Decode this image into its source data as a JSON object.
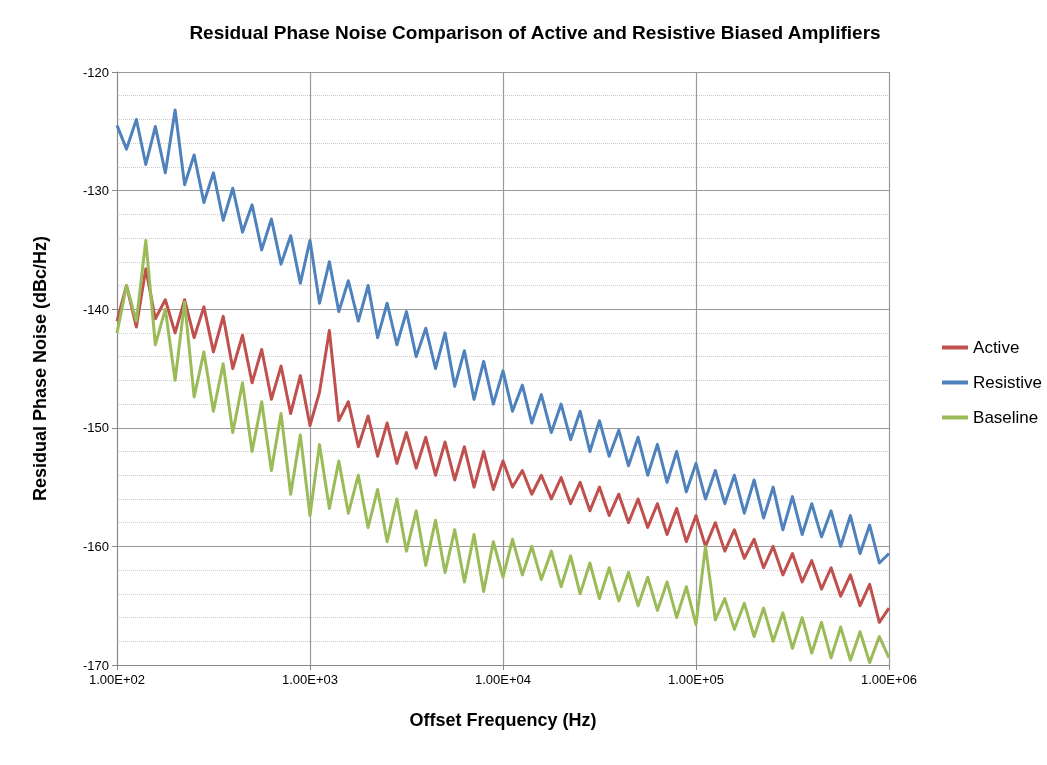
{
  "chart_data": {
    "type": "line",
    "title": "Residual Phase Noise Comparison of Active and Resistive Biased Amplifiers",
    "xlabel": "Offset Frequency (Hz)",
    "ylabel": "Residual Phase Noise (dBc/Hz)",
    "log": "x",
    "grid": true,
    "legend": "right",
    "marker": "none",
    "line_style": "solid",
    "xlim": [
      100,
      1000000
    ],
    "xticks": [
      {
        "value": 100,
        "label": "1.00E+02"
      },
      {
        "value": 1000,
        "label": "1.00E+03"
      },
      {
        "value": 10000,
        "label": "1.00E+04"
      },
      {
        "value": 100000,
        "label": "1.00E+05"
      },
      {
        "value": 1000000,
        "label": "1.00E+06"
      }
    ],
    "ylim": [
      -170,
      -120
    ],
    "yticks": [
      -170,
      -160,
      -150,
      -140,
      -130,
      -120
    ],
    "x": [
      100,
      112,
      126,
      141,
      158,
      178,
      200,
      224,
      251,
      282,
      316,
      355,
      398,
      447,
      501,
      562,
      631,
      708,
      794,
      891,
      1000,
      1120,
      1260,
      1410,
      1580,
      1780,
      2000,
      2240,
      2510,
      2820,
      3160,
      3550,
      3980,
      4470,
      5010,
      5620,
      6310,
      7080,
      7940,
      8910,
      10000,
      11200,
      12600,
      14100,
      15800,
      17800,
      20000,
      22400,
      25100,
      28200,
      31600,
      35500,
      39800,
      44700,
      50100,
      56200,
      63100,
      70800,
      79400,
      89100,
      100000,
      112000,
      126000,
      141000,
      158000,
      178000,
      200000,
      224000,
      251000,
      282000,
      316000,
      355000,
      398000,
      447000,
      501000,
      562000,
      631000,
      708000,
      794000,
      891000,
      1000000
    ],
    "series": [
      {
        "name": "Active",
        "color": "#c0504d",
        "values": [
          -141.0,
          -138.0,
          -141.5,
          -136.6,
          -140.8,
          -139.2,
          -142.0,
          -139.2,
          -142.4,
          -139.8,
          -143.6,
          -140.6,
          -145.0,
          -142.2,
          -146.2,
          -143.4,
          -147.6,
          -144.8,
          -148.8,
          -145.6,
          -149.8,
          -147.0,
          -141.8,
          -149.4,
          -147.8,
          -151.6,
          -149.0,
          -152.4,
          -149.6,
          -153.0,
          -150.4,
          -153.4,
          -150.8,
          -154.0,
          -151.2,
          -154.4,
          -151.6,
          -155.0,
          -152.0,
          -155.2,
          -152.8,
          -155.0,
          -153.6,
          -155.6,
          -154.0,
          -156.0,
          -154.2,
          -156.4,
          -154.6,
          -157.0,
          -155.0,
          -157.4,
          -155.6,
          -158.0,
          -156.0,
          -158.4,
          -156.4,
          -159.0,
          -156.8,
          -159.6,
          -157.4,
          -160.0,
          -158.0,
          -160.4,
          -158.6,
          -161.0,
          -159.4,
          -161.8,
          -160.0,
          -162.4,
          -160.6,
          -163.0,
          -161.2,
          -163.6,
          -161.8,
          -164.2,
          -162.4,
          -165.0,
          -163.2,
          -166.4,
          -165.2
        ]
      },
      {
        "name": "Resistive",
        "color": "#4f81bd",
        "values": [
          -124.5,
          -126.5,
          -124.0,
          -127.8,
          -124.6,
          -128.5,
          -123.2,
          -129.5,
          -127.0,
          -131.0,
          -128.5,
          -132.5,
          -129.8,
          -133.5,
          -131.2,
          -135.0,
          -132.4,
          -136.2,
          -133.8,
          -137.8,
          -134.2,
          -139.5,
          -136.0,
          -140.2,
          -137.6,
          -141.0,
          -138.0,
          -142.4,
          -139.5,
          -143.0,
          -140.2,
          -144.0,
          -141.6,
          -145.0,
          -142.0,
          -146.5,
          -143.5,
          -147.6,
          -144.4,
          -148.0,
          -145.2,
          -148.6,
          -146.4,
          -149.6,
          -147.2,
          -150.4,
          -148.0,
          -151.0,
          -148.6,
          -152.0,
          -149.4,
          -152.4,
          -150.2,
          -153.2,
          -150.8,
          -154.0,
          -151.4,
          -154.6,
          -152.0,
          -155.4,
          -153.0,
          -156.0,
          -153.6,
          -156.4,
          -154.0,
          -157.2,
          -154.4,
          -157.6,
          -155.0,
          -158.6,
          -155.8,
          -159.0,
          -156.4,
          -159.2,
          -157.0,
          -160.0,
          -157.4,
          -160.6,
          -158.2,
          -161.4,
          -160.6
        ]
      },
      {
        "name": "Baseline",
        "color": "#9bbb59",
        "values": [
          -142.0,
          -138.0,
          -141.0,
          -134.2,
          -143.0,
          -140.0,
          -146.0,
          -139.4,
          -147.4,
          -143.6,
          -148.6,
          -144.6,
          -150.4,
          -146.2,
          -152.0,
          -147.8,
          -153.6,
          -148.8,
          -155.6,
          -150.6,
          -157.4,
          -151.4,
          -156.8,
          -152.8,
          -157.2,
          -154.0,
          -158.4,
          -155.2,
          -159.6,
          -156.0,
          -160.4,
          -157.0,
          -161.6,
          -157.8,
          -162.2,
          -158.6,
          -163.0,
          -159.0,
          -163.8,
          -159.6,
          -162.6,
          -159.4,
          -162.4,
          -160.0,
          -162.8,
          -160.4,
          -163.4,
          -160.8,
          -164.0,
          -161.4,
          -164.4,
          -161.8,
          -164.6,
          -162.2,
          -165.0,
          -162.6,
          -165.4,
          -163.0,
          -166.0,
          -163.4,
          -166.6,
          -160.0,
          -166.2,
          -164.4,
          -167.0,
          -164.8,
          -167.6,
          -165.2,
          -168.0,
          -165.6,
          -168.6,
          -166.0,
          -169.0,
          -166.4,
          -169.4,
          -166.8,
          -169.6,
          -167.2,
          -169.8,
          -167.6,
          -169.4
        ]
      }
    ]
  }
}
